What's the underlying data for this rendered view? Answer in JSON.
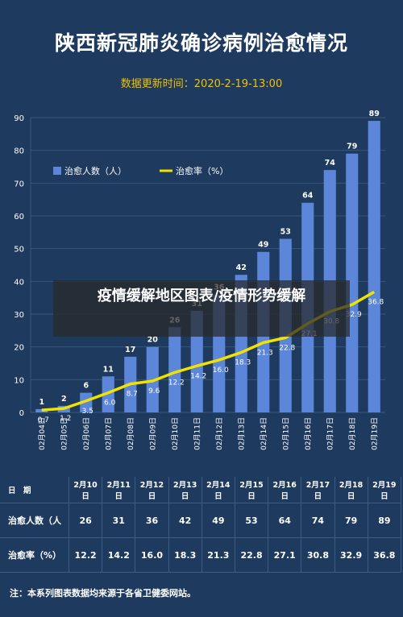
{
  "title": "陕西新冠肺炎确诊病例治愈情况",
  "update_label": "数据更新时间：",
  "update_time": "2020-2-19-13:00",
  "overlay_text": "疫情缓解地区图表/疫情形势缓解",
  "colors": {
    "background": "#1f3a5f",
    "bar": "#5b86d9",
    "line": "#f2e200",
    "grid": "#3a5579"
  },
  "chart_data": {
    "type": "bar",
    "categories": [
      "02月04日",
      "02月05日",
      "02月06日",
      "02月07日",
      "02月08日",
      "02月09日",
      "02月10日",
      "02月11日",
      "02月12日",
      "02月13日",
      "02月14日",
      "02月15日",
      "02月16日",
      "02月17日",
      "02月18日",
      "02月19日"
    ],
    "series": [
      {
        "name": "治愈人数（人）",
        "type": "bar",
        "values": [
          1,
          2,
          6,
          11,
          17,
          20,
          26,
          31,
          36,
          42,
          49,
          53,
          64,
          74,
          79,
          89
        ]
      },
      {
        "name": "治愈率（%）",
        "type": "line",
        "values": [
          0.7,
          1.2,
          3.5,
          6.0,
          8.7,
          9.6,
          12.2,
          14.2,
          16.0,
          18.3,
          21.3,
          22.8,
          27.1,
          30.8,
          32.9,
          36.8
        ]
      }
    ],
    "ylim": [
      0,
      90
    ],
    "yticks": [
      0,
      10,
      20,
      30,
      40,
      50,
      60,
      70,
      80,
      90
    ],
    "grid": true,
    "legend": "top-left"
  },
  "table": {
    "header_label": "日　期",
    "dates": [
      "2月10日",
      "2月11日",
      "2月12日",
      "2月13日",
      "2月14日",
      "2月15日",
      "2月16日",
      "2月17日",
      "2月18日",
      "2月19日"
    ],
    "rows": [
      {
        "label": "治愈人数（人",
        "values": [
          "26",
          "31",
          "36",
          "42",
          "49",
          "53",
          "64",
          "74",
          "79",
          "89"
        ]
      },
      {
        "label": "治愈率（%）",
        "values": [
          "12.2",
          "14.2",
          "16.0",
          "18.3",
          "21.3",
          "22.8",
          "27.1",
          "30.8",
          "32.9",
          "36.8"
        ]
      }
    ]
  },
  "note": "注：本系列图表数据均来源于各省卫健委网站。"
}
